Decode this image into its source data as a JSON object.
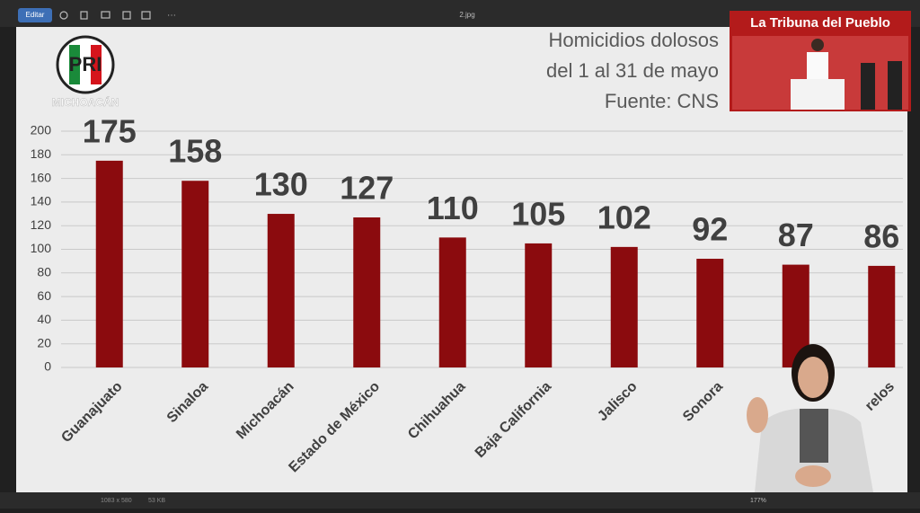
{
  "toolbar": {
    "edit": "Editar",
    "filename": "2.jpg"
  },
  "status": {
    "dimensions": "1083 x 580",
    "size": "53 KB",
    "zoom": "177%"
  },
  "logo": {
    "letters": "PRI",
    "caption": "MICHOACÁN"
  },
  "inset": {
    "title": "La Tribuna del Pueblo"
  },
  "chart_data": {
    "type": "bar",
    "title_lines": [
      "Homicidios dolosos",
      "del 1 al 31 de mayo",
      "Fuente: CNS"
    ],
    "categories": [
      "Guanajuato",
      "Sinaloa",
      "Michoacán",
      "Estado de México",
      "Chihuahua",
      "Baja California",
      "Jalisco",
      "Sonora",
      null,
      "relos"
    ],
    "values": [
      175,
      158,
      130,
      127,
      110,
      105,
      102,
      92,
      87,
      86
    ],
    "color": "#8b0b0e",
    "ylim": [
      0,
      200
    ],
    "yticks": [
      0,
      20,
      40,
      60,
      80,
      100,
      120,
      140,
      160,
      180,
      200
    ],
    "grid": true
  }
}
